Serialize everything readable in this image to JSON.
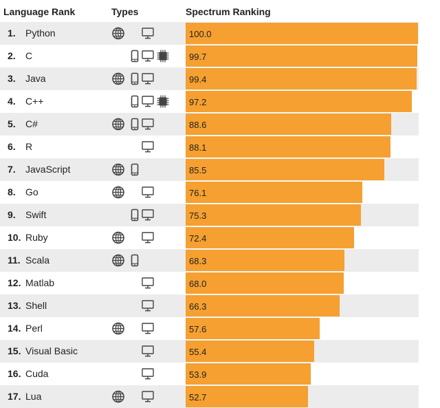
{
  "header": {
    "language_rank": "Language Rank",
    "types": "Types",
    "spectrum_ranking": "Spectrum Ranking"
  },
  "colors": {
    "bar": "#f5a031",
    "stripe": "#ececec",
    "icon": "#444444"
  },
  "chart_data": {
    "type": "bar",
    "orientation": "horizontal",
    "title": "",
    "xlim": [
      0,
      100
    ],
    "categories": [
      "Python",
      "C",
      "Java",
      "C++",
      "C#",
      "R",
      "JavaScript",
      "Go",
      "Swift",
      "Ruby",
      "Scala",
      "Matlab",
      "Shell",
      "Perl",
      "Visual Basic",
      "Cuda",
      "Lua"
    ],
    "values": [
      100.0,
      99.7,
      99.4,
      97.2,
      88.6,
      88.1,
      85.5,
      76.1,
      75.3,
      72.4,
      68.3,
      68.0,
      66.3,
      57.6,
      55.4,
      53.9,
      52.7
    ],
    "rows": [
      {
        "rank": "1.",
        "name": "Python",
        "types": [
          "web-icon",
          "desktop-icon"
        ],
        "value": 100.0,
        "label": "100.0"
      },
      {
        "rank": "2.",
        "name": "C",
        "types": [
          "mobile-icon",
          "desktop-icon",
          "embedded-icon"
        ],
        "value": 99.7,
        "label": "99.7"
      },
      {
        "rank": "3.",
        "name": "Java",
        "types": [
          "web-icon",
          "mobile-icon",
          "desktop-icon"
        ],
        "value": 99.4,
        "label": "99.4"
      },
      {
        "rank": "4.",
        "name": "C++",
        "types": [
          "mobile-icon",
          "desktop-icon",
          "embedded-icon"
        ],
        "value": 97.2,
        "label": "97.2"
      },
      {
        "rank": "5.",
        "name": "C#",
        "types": [
          "web-icon",
          "mobile-icon",
          "desktop-icon"
        ],
        "value": 88.6,
        "label": "88.6"
      },
      {
        "rank": "6.",
        "name": "R",
        "types": [
          "desktop-icon"
        ],
        "value": 88.1,
        "label": "88.1"
      },
      {
        "rank": "7.",
        "name": "JavaScript",
        "types": [
          "web-icon",
          "mobile-icon"
        ],
        "value": 85.5,
        "label": "85.5"
      },
      {
        "rank": "8.",
        "name": "Go",
        "types": [
          "web-icon",
          "desktop-icon"
        ],
        "value": 76.1,
        "label": "76.1"
      },
      {
        "rank": "9.",
        "name": "Swift",
        "types": [
          "mobile-icon",
          "desktop-icon"
        ],
        "value": 75.3,
        "label": "75.3"
      },
      {
        "rank": "10.",
        "name": "Ruby",
        "types": [
          "web-icon",
          "desktop-icon"
        ],
        "value": 72.4,
        "label": "72.4"
      },
      {
        "rank": "11.",
        "name": "Scala",
        "types": [
          "web-icon",
          "mobile-icon"
        ],
        "value": 68.3,
        "label": "68.3"
      },
      {
        "rank": "12.",
        "name": "Matlab",
        "types": [
          "desktop-icon"
        ],
        "value": 68.0,
        "label": "68.0"
      },
      {
        "rank": "13.",
        "name": "Shell",
        "types": [
          "desktop-icon"
        ],
        "value": 66.3,
        "label": "66.3"
      },
      {
        "rank": "14.",
        "name": "Perl",
        "types": [
          "web-icon",
          "desktop-icon"
        ],
        "value": 57.6,
        "label": "57.6"
      },
      {
        "rank": "15.",
        "name": "Visual Basic",
        "types": [
          "desktop-icon"
        ],
        "value": 55.4,
        "label": "55.4"
      },
      {
        "rank": "16.",
        "name": "Cuda",
        "types": [
          "desktop-icon"
        ],
        "value": 53.9,
        "label": "53.9"
      },
      {
        "rank": "17.",
        "name": "Lua",
        "types": [
          "web-icon",
          "desktop-icon"
        ],
        "value": 52.7,
        "label": "52.7"
      }
    ]
  }
}
